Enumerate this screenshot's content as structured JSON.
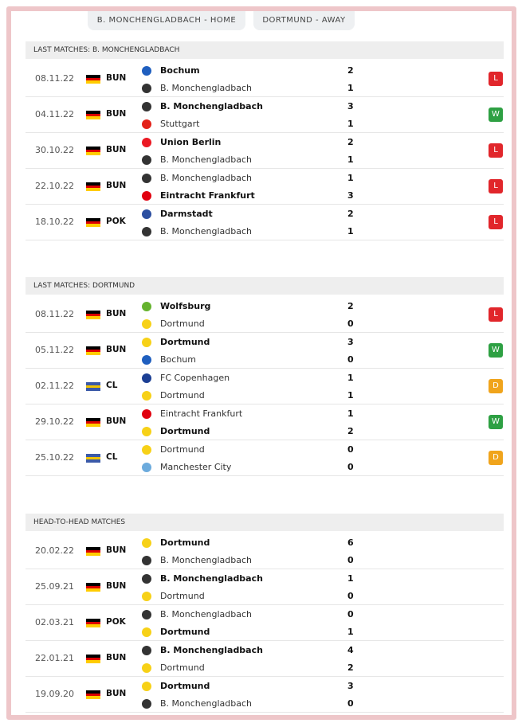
{
  "tabs": [
    "B. MONCHENGLADBACH - HOME",
    "DORTMUND - AWAY"
  ],
  "sections": [
    {
      "title": "LAST MATCHES: B. MONCHENGLADBACH",
      "matches": [
        {
          "date": "08.11.22",
          "competition": "BUN",
          "flag_colors": [
            "#000000",
            "#dd0000",
            "#ffcc00"
          ],
          "home": {
            "name": "Bochum",
            "bold": true,
            "icon_color": "#1f5fbf"
          },
          "away": {
            "name": "B. Monchengladbach",
            "bold": false,
            "icon_color": "#333333"
          },
          "home_score": 2,
          "away_score": 1,
          "result": "L",
          "result_color": "#e1262b"
        },
        {
          "date": "04.11.22",
          "competition": "BUN",
          "flag_colors": [
            "#000000",
            "#dd0000",
            "#ffcc00"
          ],
          "home": {
            "name": "B. Monchengladbach",
            "bold": true,
            "icon_color": "#333333"
          },
          "away": {
            "name": "Stuttgart",
            "bold": false,
            "icon_color": "#e32219"
          },
          "home_score": 3,
          "away_score": 1,
          "result": "W",
          "result_color": "#2ea043"
        },
        {
          "date": "30.10.22",
          "competition": "BUN",
          "flag_colors": [
            "#000000",
            "#dd0000",
            "#ffcc00"
          ],
          "home": {
            "name": "Union Berlin",
            "bold": true,
            "icon_color": "#eb1923"
          },
          "away": {
            "name": "B. Monchengladbach",
            "bold": false,
            "icon_color": "#333333"
          },
          "home_score": 2,
          "away_score": 1,
          "result": "L",
          "result_color": "#e1262b"
        },
        {
          "date": "22.10.22",
          "competition": "BUN",
          "flag_colors": [
            "#000000",
            "#dd0000",
            "#ffcc00"
          ],
          "home": {
            "name": "B. Monchengladbach",
            "bold": false,
            "icon_color": "#333333"
          },
          "away": {
            "name": "Eintracht Frankfurt",
            "bold": true,
            "icon_color": "#e1000f"
          },
          "home_score": 1,
          "away_score": 3,
          "result": "L",
          "result_color": "#e1262b"
        },
        {
          "date": "18.10.22",
          "competition": "POK",
          "flag_colors": [
            "#000000",
            "#dd0000",
            "#ffcc00"
          ],
          "home": {
            "name": "Darmstadt",
            "bold": true,
            "icon_color": "#2c4fa0"
          },
          "away": {
            "name": "B. Monchengladbach",
            "bold": false,
            "icon_color": "#333333"
          },
          "home_score": 2,
          "away_score": 1,
          "result": "L",
          "result_color": "#e1262b"
        }
      ]
    },
    {
      "title": "LAST MATCHES: DORTMUND",
      "matches": [
        {
          "date": "08.11.22",
          "competition": "BUN",
          "flag_colors": [
            "#000000",
            "#dd0000",
            "#ffcc00"
          ],
          "home": {
            "name": "Wolfsburg",
            "bold": true,
            "icon_color": "#65b32e"
          },
          "away": {
            "name": "Dortmund",
            "bold": false,
            "icon_color": "#f7d117"
          },
          "home_score": 2,
          "away_score": 0,
          "result": "L",
          "result_color": "#e1262b"
        },
        {
          "date": "05.11.22",
          "competition": "BUN",
          "flag_colors": [
            "#000000",
            "#dd0000",
            "#ffcc00"
          ],
          "home": {
            "name": "Dortmund",
            "bold": true,
            "icon_color": "#f7d117"
          },
          "away": {
            "name": "Bochum",
            "bold": false,
            "icon_color": "#1f5fbf"
          },
          "home_score": 3,
          "away_score": 0,
          "result": "W",
          "result_color": "#2ea043"
        },
        {
          "date": "02.11.22",
          "competition": "CL",
          "flag_colors": [
            "#3b5aa8",
            "#f2c300",
            "#3b5aa8"
          ],
          "home": {
            "name": "FC Copenhagen",
            "bold": false,
            "icon_color": "#1c3f94"
          },
          "away": {
            "name": "Dortmund",
            "bold": false,
            "icon_color": "#f7d117"
          },
          "home_score": 1,
          "away_score": 1,
          "result": "D",
          "result_color": "#f0a41c"
        },
        {
          "date": "29.10.22",
          "competition": "BUN",
          "flag_colors": [
            "#000000",
            "#dd0000",
            "#ffcc00"
          ],
          "home": {
            "name": "Eintracht Frankfurt",
            "bold": false,
            "icon_color": "#e1000f"
          },
          "away": {
            "name": "Dortmund",
            "bold": true,
            "icon_color": "#f7d117"
          },
          "home_score": 1,
          "away_score": 2,
          "result": "W",
          "result_color": "#2ea043"
        },
        {
          "date": "25.10.22",
          "competition": "CL",
          "flag_colors": [
            "#3b5aa8",
            "#f2c300",
            "#3b5aa8"
          ],
          "home": {
            "name": "Dortmund",
            "bold": false,
            "icon_color": "#f7d117"
          },
          "away": {
            "name": "Manchester City",
            "bold": false,
            "icon_color": "#6cabdd"
          },
          "home_score": 0,
          "away_score": 0,
          "result": "D",
          "result_color": "#f0a41c"
        }
      ]
    },
    {
      "title": "HEAD-TO-HEAD MATCHES",
      "matches": [
        {
          "date": "20.02.22",
          "competition": "BUN",
          "flag_colors": [
            "#000000",
            "#dd0000",
            "#ffcc00"
          ],
          "home": {
            "name": "Dortmund",
            "bold": true,
            "icon_color": "#f7d117"
          },
          "away": {
            "name": "B. Monchengladbach",
            "bold": false,
            "icon_color": "#333333"
          },
          "home_score": 6,
          "away_score": 0
        },
        {
          "date": "25.09.21",
          "competition": "BUN",
          "flag_colors": [
            "#000000",
            "#dd0000",
            "#ffcc00"
          ],
          "home": {
            "name": "B. Monchengladbach",
            "bold": true,
            "icon_color": "#333333"
          },
          "away": {
            "name": "Dortmund",
            "bold": false,
            "icon_color": "#f7d117"
          },
          "home_score": 1,
          "away_score": 0
        },
        {
          "date": "02.03.21",
          "competition": "POK",
          "flag_colors": [
            "#000000",
            "#dd0000",
            "#ffcc00"
          ],
          "home": {
            "name": "B. Monchengladbach",
            "bold": false,
            "icon_color": "#333333"
          },
          "away": {
            "name": "Dortmund",
            "bold": true,
            "icon_color": "#f7d117"
          },
          "home_score": 0,
          "away_score": 1
        },
        {
          "date": "22.01.21",
          "competition": "BUN",
          "flag_colors": [
            "#000000",
            "#dd0000",
            "#ffcc00"
          ],
          "home": {
            "name": "B. Monchengladbach",
            "bold": true,
            "icon_color": "#333333"
          },
          "away": {
            "name": "Dortmund",
            "bold": false,
            "icon_color": "#f7d117"
          },
          "home_score": 4,
          "away_score": 2
        },
        {
          "date": "19.09.20",
          "competition": "BUN",
          "flag_colors": [
            "#000000",
            "#dd0000",
            "#ffcc00"
          ],
          "home": {
            "name": "Dortmund",
            "bold": true,
            "icon_color": "#f7d117"
          },
          "away": {
            "name": "B. Monchengladbach",
            "bold": false,
            "icon_color": "#333333"
          },
          "home_score": 3,
          "away_score": 0
        }
      ]
    }
  ]
}
